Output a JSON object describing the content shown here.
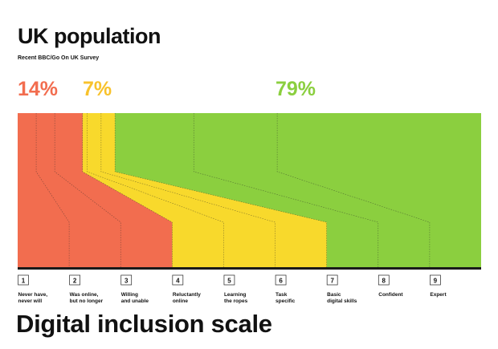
{
  "chart_data": {
    "type": "area",
    "title": "UK population",
    "subtitle": "Recent BBC/Go On UK Survey",
    "xlabel": "Digital inclusion scale",
    "summary": [
      {
        "label": "14%",
        "group": "offline",
        "color": "#f26d4f"
      },
      {
        "label": "7%",
        "group": "reluctant",
        "color": "#f8c22c"
      },
      {
        "label": "79%",
        "group": "online",
        "color": "#8bcf3f"
      }
    ],
    "categories": [
      {
        "number": "1",
        "line1": "Never have,",
        "line2": "never will",
        "color": "#f26d4f"
      },
      {
        "number": "2",
        "line1": "Was online,",
        "line2": "but no longer",
        "color": "#f26d4f"
      },
      {
        "number": "3",
        "line1": "Willing",
        "line2": "and unable",
        "color": "#f26d4f"
      },
      {
        "number": "4",
        "line1": "Reluctantly",
        "line2": "online",
        "color": "#f8d92c"
      },
      {
        "number": "5",
        "line1": "Learning",
        "line2": "the ropes",
        "color": "#f8d92c"
      },
      {
        "number": "6",
        "line1": "Task",
        "line2": "specific",
        "color": "#f8d92c"
      },
      {
        "number": "7",
        "line1": "Basic",
        "line2": "digital skills",
        "color": "#8bcf3f"
      },
      {
        "number": "8",
        "line1": "Confident",
        "line2": "",
        "color": "#8bcf3f"
      },
      {
        "number": "9",
        "line1": "Expert",
        "line2": "",
        "color": "#8bcf3f"
      }
    ],
    "population_share_percent": [
      4,
      4,
      6,
      1,
      3,
      3,
      17,
      18,
      44
    ],
    "colors": {
      "red": "#f26d4f",
      "yellow": "#f8d92c",
      "green": "#8bcf3f",
      "axis": "#1a1a1a"
    }
  }
}
